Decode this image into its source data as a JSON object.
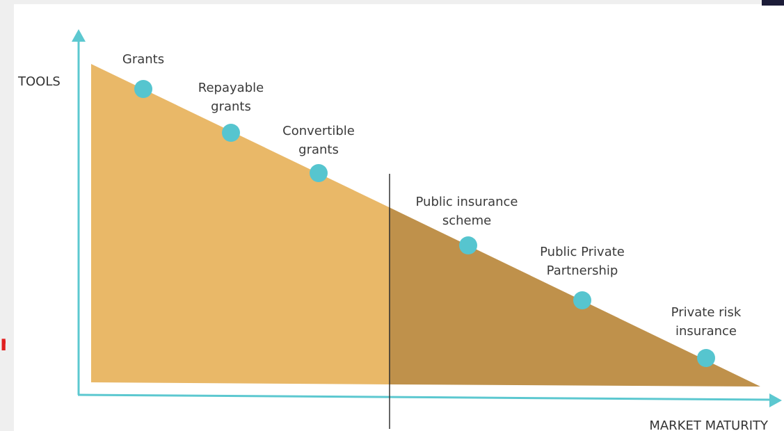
{
  "axes": {
    "y_label": "TOOLS",
    "x_label": "MARKET MATURITY"
  },
  "colors": {
    "axis": "#5cc8d0",
    "region_left": "#e9b868",
    "region_right": "#bf914b",
    "marker": "#56c5cf",
    "divider": "#333333",
    "left_mark": "#e02020"
  },
  "left_mark": "n",
  "tools": [
    {
      "id": "grants",
      "lines": [
        "Grants"
      ]
    },
    {
      "id": "repayable-grants",
      "lines": [
        "Repayable",
        "grants"
      ]
    },
    {
      "id": "convertible-grants",
      "lines": [
        "Convertible",
        "grants"
      ]
    },
    {
      "id": "public-insurance-scheme",
      "lines": [
        "Public insurance",
        "scheme"
      ]
    },
    {
      "id": "public-private-partnership",
      "lines": [
        "Public Private",
        "Partnership"
      ]
    },
    {
      "id": "private-risk-insurance",
      "lines": [
        "Private risk",
        "insurance"
      ]
    }
  ]
}
